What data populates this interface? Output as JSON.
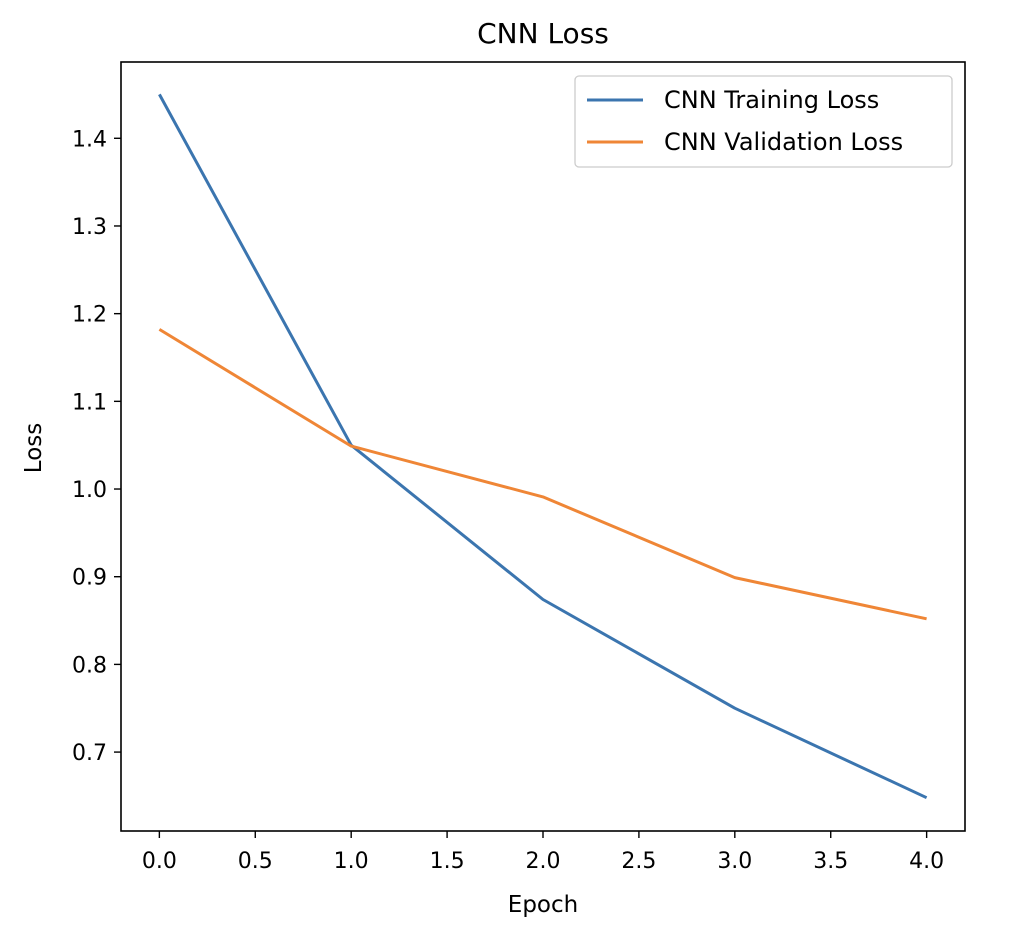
{
  "chart_data": {
    "type": "line",
    "title": "CNN Loss",
    "xlabel": "Epoch",
    "ylabel": "Loss",
    "x": [
      0,
      1,
      2,
      3,
      4
    ],
    "series": [
      {
        "name": "CNN Training Loss",
        "color": "#3b75af",
        "values": [
          1.45,
          1.05,
          0.874,
          0.75,
          0.648
        ]
      },
      {
        "name": "CNN Validation Loss",
        "color": "#ef8636",
        "values": [
          1.182,
          1.049,
          0.991,
          0.899,
          0.852
        ]
      }
    ],
    "xlim": [
      -0.2,
      4.2
    ],
    "ylim": [
      0.61,
      1.487
    ],
    "xticks": [
      "0.0",
      "0.5",
      "1.0",
      "1.5",
      "2.0",
      "2.5",
      "3.0",
      "3.5",
      "4.0"
    ],
    "yticks": [
      "0.7",
      "0.8",
      "0.9",
      "1.0",
      "1.1",
      "1.2",
      "1.3",
      "1.4"
    ],
    "grid": false,
    "legend_position": "top-right"
  }
}
